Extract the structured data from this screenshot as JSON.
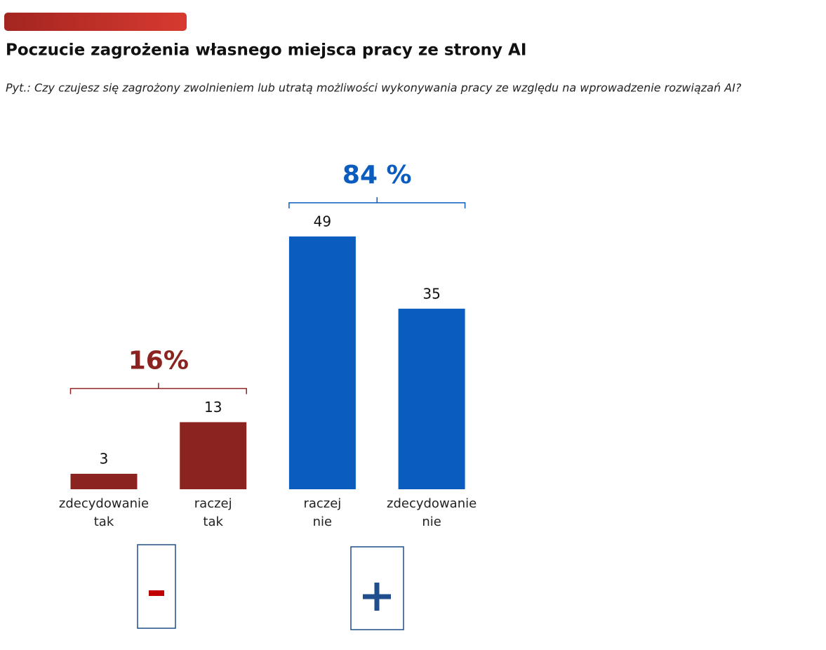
{
  "chart_data": {
    "type": "bar",
    "title": "Poczucie zagrożenia własnego miejsca pracy ze strony AI",
    "subtitle": "Pyt.: Czy czujesz się zagrożony zwolnieniem lub utratą możliwości wykonywania pracy ze względu na wprowadzenie rozwiązań AI?",
    "categories": [
      "zdecydowanie tak",
      "raczej tak",
      "raczej nie",
      "zdecydowanie nie"
    ],
    "series": [
      {
        "values": [
          3,
          13,
          49,
          35
        ],
        "colors": [
          "#8b2420",
          "#8b2420",
          "#0a5cbf",
          "#0a5cbf"
        ]
      }
    ],
    "annotations": [
      {
        "text": "16%",
        "color": "#8b2420"
      },
      {
        "text": "84 %",
        "color": "#0a5cbf"
      }
    ]
  }
}
